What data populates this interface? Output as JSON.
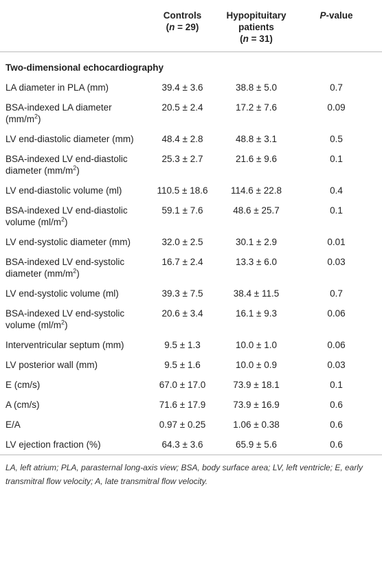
{
  "table": {
    "header": [
      [
        [
          "Controls"
        ],
        [
          "(",
          {
            "text": "n",
            "style": "italic"
          },
          " = 29)"
        ]
      ],
      [
        [
          "Hypopituitary"
        ],
        [
          "patients"
        ],
        [
          "(",
          {
            "text": "n",
            "style": "italic"
          },
          " = 31)"
        ]
      ],
      [
        [
          {
            "text": "P",
            "style": "italic"
          },
          "-value"
        ]
      ]
    ],
    "section": "Two-dimensional echocardiography",
    "rows": [
      [
        [
          "LA diameter in PLA (mm)"
        ],
        "39.4 ± 3.6",
        "38.8 ± 5.0",
        "0.7"
      ],
      [
        [
          "BSA-indexed LA diameter (mm/m",
          {
            "text": "2",
            "style": "sup"
          },
          ")"
        ],
        "20.5 ± 2.4",
        "17.2 ± 7.6",
        "0.09"
      ],
      [
        [
          "LV end-diastolic diameter (mm)"
        ],
        "48.4 ± 2.8",
        "48.8 ± 3.1",
        "0.5"
      ],
      [
        [
          "BSA-indexed LV end-diastolic diameter (mm/m",
          {
            "text": "2",
            "style": "sup"
          },
          ")"
        ],
        "25.3 ± 2.7",
        "21.6 ± 9.6",
        "0.1"
      ],
      [
        [
          "LV end-diastolic volume (ml)"
        ],
        "110.5 ± 18.6",
        "114.6 ± 22.8",
        "0.4"
      ],
      [
        [
          "BSA-indexed LV end-diastolic volume (ml/m",
          {
            "text": "2",
            "style": "sup"
          },
          ")"
        ],
        "59.1 ± 7.6",
        "48.6 ± 25.7",
        "0.1"
      ],
      [
        [
          "LV end-systolic diameter (mm)"
        ],
        "32.0 ± 2.5",
        "30.1 ± 2.9",
        "0.01"
      ],
      [
        [
          "BSA-indexed LV end-systolic diameter (mm/m",
          {
            "text": "2",
            "style": "sup"
          },
          ")"
        ],
        "16.7 ± 2.4",
        "13.3 ± 6.0",
        "0.03"
      ],
      [
        [
          "LV end-systolic volume (ml)"
        ],
        "39.3 ± 7.5",
        "38.4 ± 11.5",
        "0.7"
      ],
      [
        [
          "BSA-indexed LV end-systolic volume (ml/m",
          {
            "text": "2",
            "style": "sup"
          },
          ")"
        ],
        "20.6 ± 3.4",
        "16.1 ± 9.3",
        "0.06"
      ],
      [
        [
          "Interventricular septum (mm)"
        ],
        "9.5 ± 1.3",
        "10.0 ± 1.0",
        "0.06"
      ],
      [
        [
          "LV posterior wall (mm)"
        ],
        "9.5 ± 1.6",
        "10.0 ± 0.9",
        "0.03"
      ],
      [
        [
          "E (cm/s)"
        ],
        "67.0 ± 17.0",
        "73.9 ± 18.1",
        "0.1"
      ],
      [
        [
          "A (cm/s)"
        ],
        "71.6 ± 17.9",
        "73.9 ± 16.9",
        "0.6"
      ],
      [
        [
          "E/A"
        ],
        "0.97 ± 0.25",
        "1.06 ± 0.38",
        "0.6"
      ],
      [
        [
          "LV ejection fraction (%)"
        ],
        "64.3 ± 3.6",
        "65.9 ± 5.6",
        "0.6"
      ]
    ],
    "footnote": "LA, left atrium; PLA, parasternal long-axis view; BSA, body surface area; LV, left ventricle; E, early transmitral flow velocity; A, late transmitral flow velocity."
  }
}
